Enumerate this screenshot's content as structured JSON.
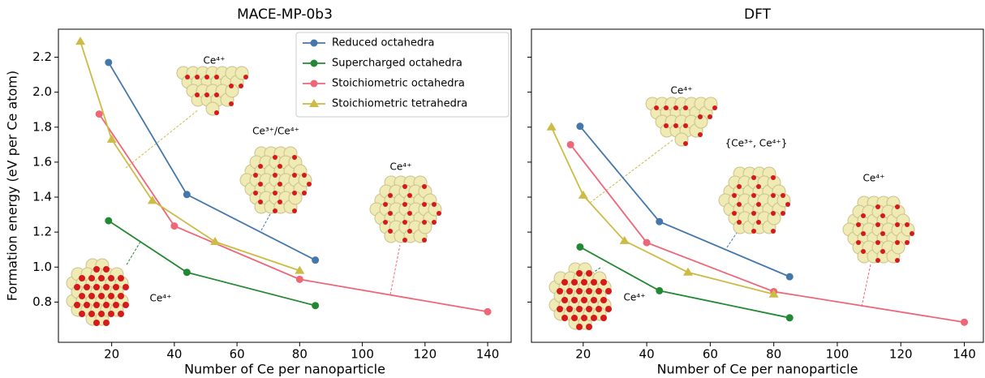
{
  "chart_data": [
    {
      "type": "line",
      "title": "MACE-MP-0b3",
      "xlabel": "Number of Ce per nanoparticle",
      "ylabel": "Formation energy (eV per Ce atom)",
      "xlim": [
        3,
        147.5
      ],
      "ylim": [
        0.57,
        2.36
      ],
      "xticks": [
        20,
        40,
        60,
        80,
        100,
        120,
        140
      ],
      "yticks": [
        {
          "value": 0.8,
          "label": "0.8"
        },
        {
          "value": 1.0,
          "label": "1.0"
        },
        {
          "value": 1.2,
          "label": "1.2"
        },
        {
          "value": 1.4,
          "label": "1.4"
        },
        {
          "value": 1.6,
          "label": "1.6"
        },
        {
          "value": 1.8,
          "label": "1.8"
        },
        {
          "value": 2.0,
          "label": "2.0"
        },
        {
          "value": 2.2,
          "label": "2.2"
        }
      ],
      "show_ytick_labels": true,
      "legend": "upper right",
      "series": [
        {
          "name": "Reduced octahedra",
          "color": "#4477aa",
          "marker": "o",
          "x": [
            19,
            44,
            85
          ],
          "values": [
            2.17,
            1.415,
            1.04
          ]
        },
        {
          "name": "Supercharged octahedra",
          "color": "#228833",
          "marker": "o",
          "x": [
            19,
            44,
            85
          ],
          "values": [
            1.265,
            0.97,
            0.78
          ]
        },
        {
          "name": "Stoichiometric octahedra",
          "color": "#ee6677",
          "marker": "o",
          "x": [
            16,
            40,
            80,
            140
          ],
          "values": [
            1.875,
            1.235,
            0.93,
            0.745
          ]
        },
        {
          "name": "Stoichiometric tetrahedra",
          "color": "#ccbb44",
          "marker": "^",
          "x": [
            10,
            20,
            33,
            53,
            80
          ],
          "values": [
            2.29,
            1.73,
            1.38,
            1.145,
            0.98
          ]
        }
      ],
      "annotations": [
        "Ce⁴⁺",
        "Ce³⁺/Ce⁴⁺",
        "Ce⁴⁺",
        "Ce⁴⁺"
      ]
    },
    {
      "type": "line",
      "title": "DFT",
      "xlabel": "Number of Ce per nanoparticle",
      "xlim": [
        3.7,
        146
      ],
      "ylim": [
        0.57,
        2.36
      ],
      "xticks": [
        20,
        40,
        60,
        80,
        100,
        120,
        140
      ],
      "yticks": [
        0.8,
        1.0,
        1.2,
        1.4,
        1.6,
        1.8,
        2.0,
        2.2
      ],
      "show_ytick_labels": false,
      "series": [
        {
          "color": "#4477aa",
          "marker": "o",
          "x": [
            19,
            44,
            85
          ],
          "values": [
            1.805,
            1.26,
            0.945
          ]
        },
        {
          "color": "#228833",
          "marker": "o",
          "x": [
            19,
            44,
            85
          ],
          "values": [
            1.115,
            0.865,
            0.71
          ]
        },
        {
          "color": "#ee6677",
          "marker": "o",
          "x": [
            16,
            40,
            80,
            140
          ],
          "values": [
            1.7,
            1.14,
            0.86,
            0.685
          ]
        },
        {
          "color": "#ccbb44",
          "marker": "^",
          "x": [
            10,
            20,
            33,
            53,
            80
          ],
          "values": [
            1.8,
            1.41,
            1.15,
            0.97,
            0.845
          ]
        }
      ],
      "annotations": [
        "Ce⁴⁺",
        "{Ce³⁺, Ce⁴⁺}",
        "Ce⁴⁺",
        "Ce⁴⁺"
      ]
    }
  ]
}
